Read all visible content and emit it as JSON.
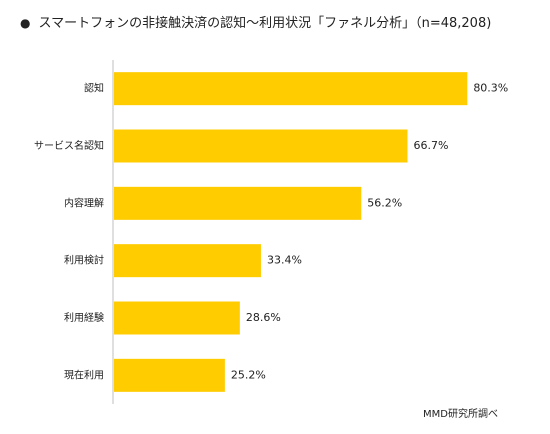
{
  "title_bullet": "●",
  "chart_data": {
    "type": "bar",
    "orientation": "horizontal",
    "title": "スマートフォンの非接触決済の認知～利用状況「ファネル分析」（n=48,208)",
    "categories": [
      "認知",
      "サービス名認知",
      "内容理解",
      "利用検討",
      "利用経験",
      "現在利用"
    ],
    "values": [
      80.3,
      66.7,
      56.2,
      33.4,
      28.6,
      25.2
    ],
    "value_labels": [
      "80.3%",
      "66.7%",
      "56.2%",
      "33.4%",
      "28.6%",
      "25.2%"
    ],
    "xlim": [
      0,
      100
    ],
    "grid": false,
    "legend": "none",
    "bar_color": "#FFCC00",
    "axis_color": "#bfbfbf"
  },
  "source": "MMD研究所調べ"
}
